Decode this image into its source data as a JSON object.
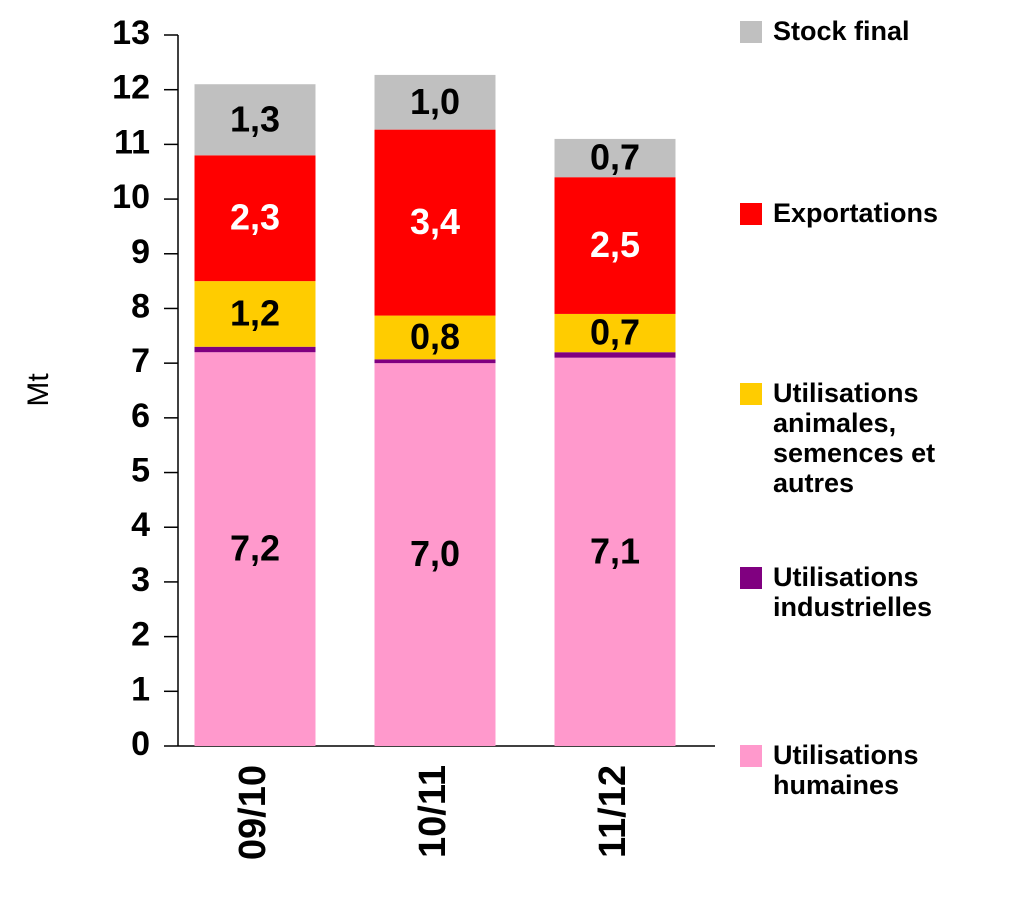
{
  "chart_data": {
    "type": "stacked_bar",
    "y_axis_label": "Mt",
    "categories": [
      "09/10",
      "10/11",
      "11/12"
    ],
    "series": [
      {
        "name": "Utilisations humaines",
        "color": "#ff99cc",
        "label_color": "#000000",
        "values": [
          7.2,
          7.0,
          7.1
        ],
        "value_labels": [
          "7,2",
          "7,0",
          "7,1"
        ]
      },
      {
        "name": "Utilisations industrielles",
        "color": "#800080",
        "values": [
          0.1,
          0.07,
          0.1
        ]
      },
      {
        "name": "Utilisations animales, semences et autres",
        "color": "#ffcc00",
        "label_color": "#000000",
        "values": [
          1.2,
          0.8,
          0.7
        ],
        "value_labels": [
          "1,2",
          "0,8",
          "0,7"
        ]
      },
      {
        "name": "Exportations",
        "color": "#ff0000",
        "label_color": "#ffffff",
        "values": [
          2.3,
          3.4,
          2.5
        ],
        "value_labels": [
          "2,3",
          "3,4",
          "2,5"
        ]
      },
      {
        "name": "Stock final",
        "color": "#c0c0c0",
        "label_color": "#000000",
        "values": [
          1.3,
          1.0,
          0.7
        ],
        "value_labels": [
          "1,3",
          "1,0",
          "0,7"
        ]
      }
    ],
    "ylim": [
      0,
      13
    ],
    "yticks": [
      0,
      1,
      2,
      3,
      4,
      5,
      6,
      7,
      8,
      9,
      10,
      11,
      12,
      13
    ],
    "legend": "right"
  }
}
